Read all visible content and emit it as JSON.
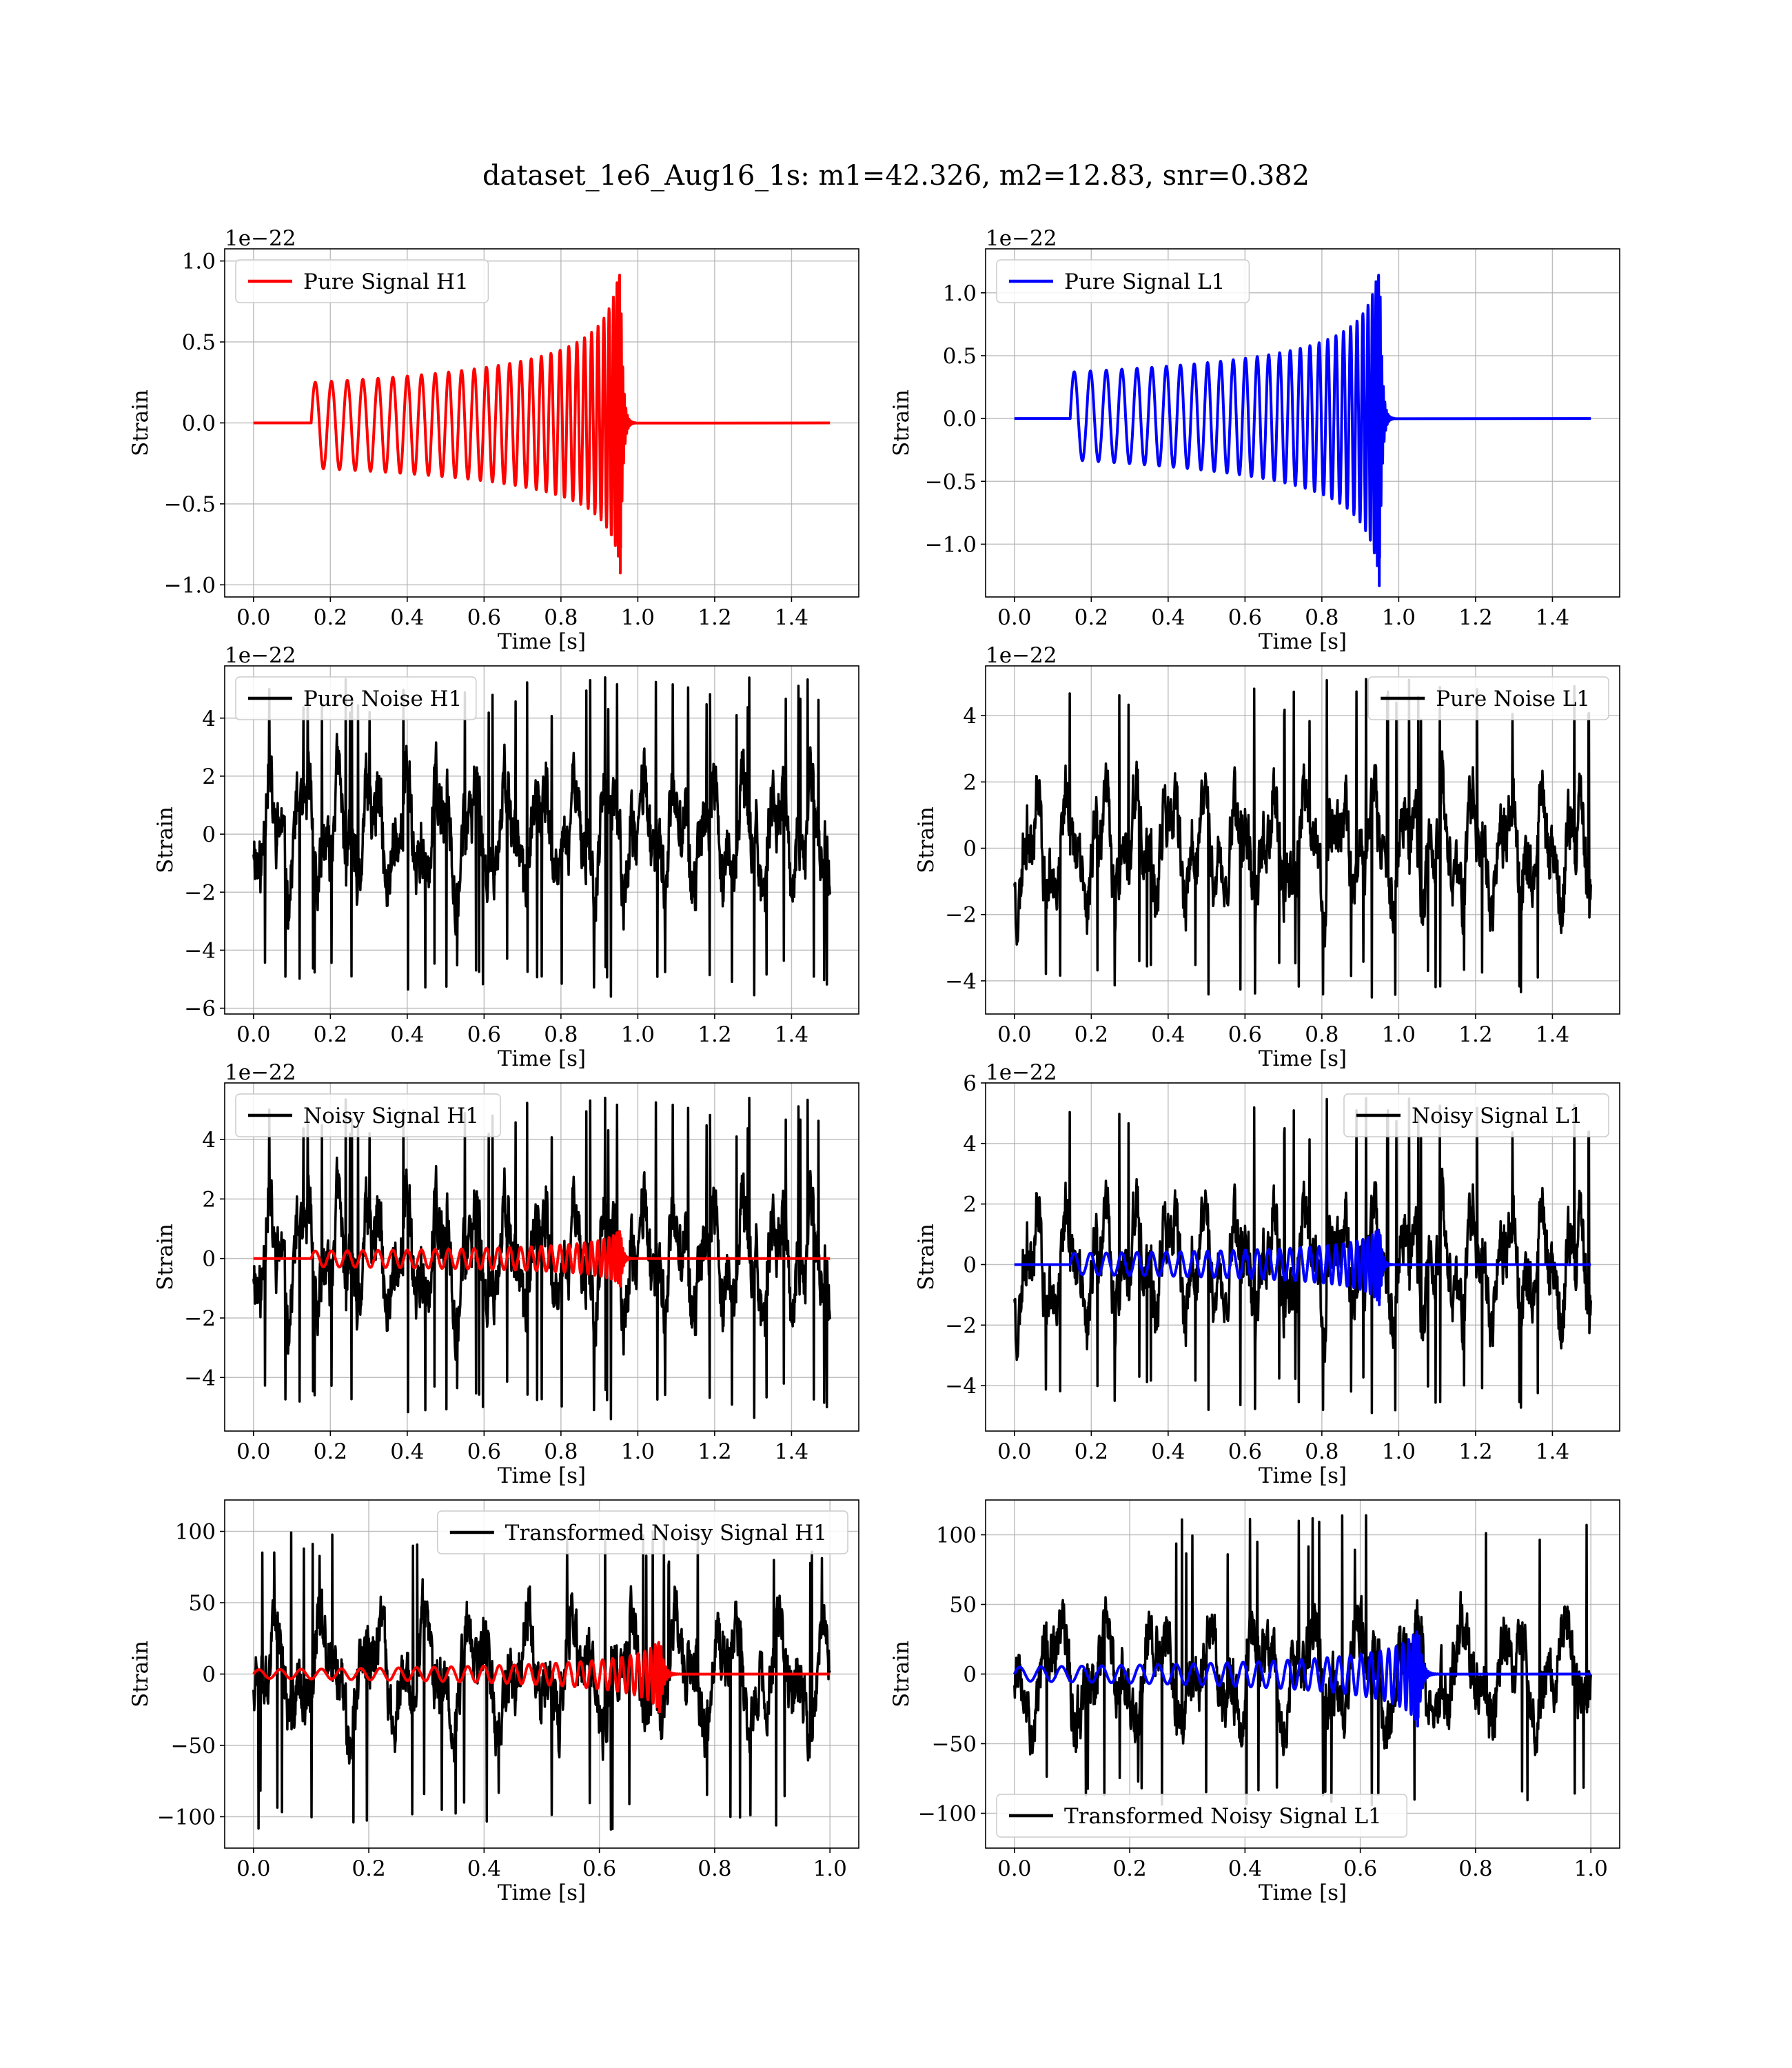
{
  "figure": {
    "title": "dataset_1e6_Aug16_1s: m1=42.326, m2=12.83, snr=0.382"
  },
  "chart_data": [
    {
      "type": "line",
      "id": "pure-signal-h1",
      "xlabel": "Time [s]",
      "ylabel": "Strain",
      "offset_text": "1e−22",
      "xlim": [
        -0.075,
        1.575
      ],
      "ylim": [
        -1.075,
        1.075
      ],
      "xticks": [
        0.0,
        0.2,
        0.4,
        0.6,
        0.8,
        1.0,
        1.2,
        1.4
      ],
      "xtick_labels": [
        "0.0",
        "0.2",
        "0.4",
        "0.6",
        "0.8",
        "1.0",
        "1.2",
        "1.4"
      ],
      "yticks": [
        -1.0,
        -0.5,
        0.0,
        0.5,
        1.0
      ],
      "ytick_labels": [
        "−1.0",
        "−0.5",
        "0.0",
        "0.5",
        "1.0"
      ],
      "grid": true,
      "legend_position": "upper-left",
      "series": [
        {
          "name": "Pure Signal H1",
          "color": "#ff0000",
          "kind": "chirp",
          "t_start": 0.15,
          "t_merge": 0.955,
          "t_end": 1.5,
          "cycles": 30,
          "amp_start_pos": 0.25,
          "amp_start_neg": -0.28,
          "amp_peak_pos": 1.02,
          "amp_peak_neg": -0.94
        }
      ]
    },
    {
      "type": "line",
      "id": "pure-signal-l1",
      "xlabel": "Time [s]",
      "ylabel": "Strain",
      "offset_text": "1e−22",
      "xlim": [
        -0.075,
        1.575
      ],
      "ylim": [
        -1.42,
        1.35
      ],
      "xticks": [
        0.0,
        0.2,
        0.4,
        0.6,
        0.8,
        1.0,
        1.2,
        1.4
      ],
      "xtick_labels": [
        "0.0",
        "0.2",
        "0.4",
        "0.6",
        "0.8",
        "1.0",
        "1.2",
        "1.4"
      ],
      "yticks": [
        -1.0,
        -0.5,
        0.0,
        0.5,
        1.0
      ],
      "ytick_labels": [
        "−1.0",
        "−0.5",
        "0.0",
        "0.5",
        "1.0"
      ],
      "grid": true,
      "legend_position": "upper-left",
      "series": [
        {
          "name": "Pure Signal L1",
          "color": "#0000ff",
          "kind": "chirp",
          "t_start": 0.145,
          "t_merge": 0.95,
          "t_end": 1.5,
          "cycles": 30,
          "amp_start_pos": 0.37,
          "amp_start_neg": -0.33,
          "amp_peak_pos": 1.27,
          "amp_peak_neg": -1.35
        }
      ]
    },
    {
      "type": "line",
      "id": "pure-noise-h1",
      "xlabel": "Time [s]",
      "ylabel": "Strain",
      "offset_text": "1e−22",
      "xlim": [
        -0.075,
        1.575
      ],
      "ylim": [
        -6.2,
        5.8
      ],
      "xticks": [
        0.0,
        0.2,
        0.4,
        0.6,
        0.8,
        1.0,
        1.2,
        1.4
      ],
      "xtick_labels": [
        "0.0",
        "0.2",
        "0.4",
        "0.6",
        "0.8",
        "1.0",
        "1.2",
        "1.4"
      ],
      "yticks": [
        -6,
        -4,
        -2,
        0,
        2,
        4
      ],
      "ytick_labels": [
        "−6",
        "−4",
        "−2",
        "0",
        "2",
        "4"
      ],
      "grid": true,
      "legend_position": "upper-left",
      "series": [
        {
          "name": "Pure Noise H1",
          "color": "#000000",
          "kind": "noise",
          "t_start": 0.0,
          "t_end": 1.5,
          "max": 5.4,
          "min": -5.6,
          "seed": 11
        }
      ]
    },
    {
      "type": "line",
      "id": "pure-noise-l1",
      "xlabel": "Time [s]",
      "ylabel": "Strain",
      "offset_text": "1e−22",
      "xlim": [
        -0.075,
        1.575
      ],
      "ylim": [
        -5.0,
        5.5
      ],
      "xticks": [
        0.0,
        0.2,
        0.4,
        0.6,
        0.8,
        1.0,
        1.2,
        1.4
      ],
      "xtick_labels": [
        "0.0",
        "0.2",
        "0.4",
        "0.6",
        "0.8",
        "1.0",
        "1.2",
        "1.4"
      ],
      "yticks": [
        -4,
        -2,
        0,
        2,
        4
      ],
      "ytick_labels": [
        "−4",
        "−2",
        "0",
        "2",
        "4"
      ],
      "grid": true,
      "legend_position": "upper-right",
      "series": [
        {
          "name": "Pure Noise L1",
          "color": "#000000",
          "kind": "noise",
          "t_start": 0.0,
          "t_end": 1.5,
          "max": 5.1,
          "min": -4.5,
          "seed": 23
        }
      ]
    },
    {
      "type": "line",
      "id": "noisy-signal-h1",
      "xlabel": "Time [s]",
      "ylabel": "Strain",
      "offset_text": "1e−22",
      "xlim": [
        -0.075,
        1.575
      ],
      "ylim": [
        -5.8,
        5.9
      ],
      "xticks": [
        0.0,
        0.2,
        0.4,
        0.6,
        0.8,
        1.0,
        1.2,
        1.4
      ],
      "xtick_labels": [
        "0.0",
        "0.2",
        "0.4",
        "0.6",
        "0.8",
        "1.0",
        "1.2",
        "1.4"
      ],
      "yticks": [
        -4,
        -2,
        0,
        2,
        4
      ],
      "ytick_labels": [
        "−4",
        "−2",
        "0",
        "2",
        "4"
      ],
      "grid": true,
      "legend_position": "upper-left",
      "series": [
        {
          "name": "Noisy Signal H1",
          "color": "#000000",
          "kind": "noise",
          "t_start": 0.0,
          "t_end": 1.5,
          "max": 5.4,
          "min": -5.4,
          "seed": 11
        },
        {
          "color": "#ff0000",
          "kind": "chirp",
          "t_start": 0.15,
          "t_merge": 0.955,
          "t_end": 1.5,
          "cycles": 30,
          "amp_start_pos": 0.25,
          "amp_start_neg": -0.28,
          "amp_peak_pos": 1.02,
          "amp_peak_neg": -0.94
        }
      ]
    },
    {
      "type": "line",
      "id": "noisy-signal-l1",
      "xlabel": "Time [s]",
      "ylabel": "Strain",
      "offset_text": "1e−22",
      "xlim": [
        -0.075,
        1.575
      ],
      "ylim": [
        -5.5,
        6.0
      ],
      "xticks": [
        0.0,
        0.2,
        0.4,
        0.6,
        0.8,
        1.0,
        1.2,
        1.4
      ],
      "xtick_labels": [
        "0.0",
        "0.2",
        "0.4",
        "0.6",
        "0.8",
        "1.0",
        "1.2",
        "1.4"
      ],
      "yticks": [
        -4,
        -2,
        0,
        2,
        4,
        6
      ],
      "ytick_labels": [
        "−4",
        "−2",
        "0",
        "2",
        "4",
        "6"
      ],
      "grid": true,
      "legend_position": "upper-right",
      "series": [
        {
          "name": "Noisy Signal L1",
          "color": "#000000",
          "kind": "noise",
          "t_start": 0.0,
          "t_end": 1.5,
          "max": 5.5,
          "min": -4.9,
          "seed": 23
        },
        {
          "color": "#0000ff",
          "kind": "chirp",
          "t_start": 0.145,
          "t_merge": 0.95,
          "t_end": 1.5,
          "cycles": 30,
          "amp_start_pos": 0.37,
          "amp_start_neg": -0.33,
          "amp_peak_pos": 1.27,
          "amp_peak_neg": -1.35
        }
      ]
    },
    {
      "type": "line",
      "id": "transformed-noisy-signal-h1",
      "xlabel": "Time [s]",
      "ylabel": "Strain",
      "offset_text": "",
      "xlim": [
        -0.05,
        1.05
      ],
      "ylim": [
        -122,
        122
      ],
      "xticks": [
        0.0,
        0.2,
        0.4,
        0.6,
        0.8,
        1.0
      ],
      "xtick_labels": [
        "0.0",
        "0.2",
        "0.4",
        "0.6",
        "0.8",
        "1.0"
      ],
      "yticks": [
        -100,
        -50,
        0,
        50,
        100
      ],
      "ytick_labels": [
        "−100",
        "−50",
        "0",
        "50",
        "100"
      ],
      "grid": true,
      "legend_position": "upper-right",
      "series": [
        {
          "name": "Transformed Noisy Signal H1",
          "color": "#000000",
          "kind": "noise",
          "t_start": 0.0,
          "t_end": 1.0,
          "max": 101,
          "min": -109,
          "seed": 37
        },
        {
          "color": "#ff0000",
          "kind": "chirp",
          "t_start": 0.0,
          "t_merge": 0.705,
          "t_end": 1.0,
          "cycles": 30,
          "amp_start_pos": 3,
          "amp_start_neg": -3,
          "amp_peak_pos": 25,
          "amp_peak_neg": -27
        }
      ]
    },
    {
      "type": "line",
      "id": "transformed-noisy-signal-l1",
      "xlabel": "Time [s]",
      "ylabel": "Strain",
      "offset_text": "",
      "xlim": [
        -0.05,
        1.05
      ],
      "ylim": [
        -125,
        125
      ],
      "xticks": [
        0.0,
        0.2,
        0.4,
        0.6,
        0.8,
        1.0
      ],
      "xtick_labels": [
        "0.0",
        "0.2",
        "0.4",
        "0.6",
        "0.8",
        "1.0"
      ],
      "yticks": [
        -100,
        -50,
        0,
        50,
        100
      ],
      "ytick_labels": [
        "−100",
        "−50",
        "0",
        "50",
        "100"
      ],
      "grid": true,
      "legend_position": "lower-left",
      "series": [
        {
          "name": "Transformed Noisy Signal L1",
          "color": "#000000",
          "kind": "noise",
          "t_start": 0.0,
          "t_end": 1.0,
          "max": 114,
          "min": -94,
          "seed": 53
        },
        {
          "color": "#0000ff",
          "kind": "chirp",
          "t_start": 0.0,
          "t_merge": 0.7,
          "t_end": 1.0,
          "cycles": 30,
          "amp_start_pos": 5,
          "amp_start_neg": -5,
          "amp_peak_pos": 34,
          "amp_peak_neg": -38
        }
      ]
    }
  ]
}
